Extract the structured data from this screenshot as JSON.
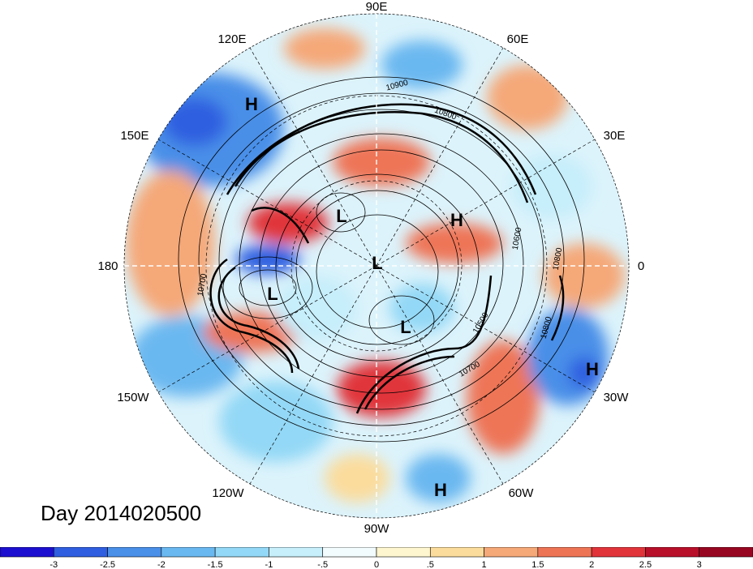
{
  "map": {
    "projection": "north-polar-stereographic",
    "longitude_labels": [
      {
        "text": "90E",
        "lon_pos": "top"
      },
      {
        "text": "60E",
        "lon_pos": "top-right"
      },
      {
        "text": "30E",
        "lon_pos": "upper-right"
      },
      {
        "text": "0",
        "lon_pos": "right"
      },
      {
        "text": "30W",
        "lon_pos": "lower-right"
      },
      {
        "text": "60W",
        "lon_pos": "bottom-right"
      },
      {
        "text": "90W",
        "lon_pos": "bottom"
      },
      {
        "text": "120W",
        "lon_pos": "bottom-left"
      },
      {
        "text": "150W",
        "lon_pos": "lower-left"
      },
      {
        "text": "180",
        "lon_pos": "left"
      },
      {
        "text": "150E",
        "lon_pos": "upper-left"
      },
      {
        "text": "120E",
        "lon_pos": "top-left"
      }
    ],
    "pressure_systems": [
      "H",
      "L",
      "H",
      "L",
      "L",
      "L",
      "H",
      "H"
    ],
    "contour_labels": [
      "10900",
      "10800",
      "10700",
      "10700",
      "10500",
      "10800",
      "10800",
      "10600"
    ]
  },
  "title": "Day 2014020500",
  "colorbar": {
    "ticks": [
      "-3",
      "-2.5",
      "-2",
      "-1.5",
      "-1",
      "-.5",
      "0",
      ".5",
      "1",
      "1.5",
      "2",
      "2.5",
      "3"
    ],
    "colors": [
      "#1c0fd0",
      "#2f5ee0",
      "#4a8fe8",
      "#6ab8f0",
      "#93d8f6",
      "#c6eefb",
      "#f2fbfd",
      "#fdf6cf",
      "#fbdc9c",
      "#f5a878",
      "#ee7456",
      "#e0343a",
      "#b80f2a",
      "#980721"
    ]
  }
}
